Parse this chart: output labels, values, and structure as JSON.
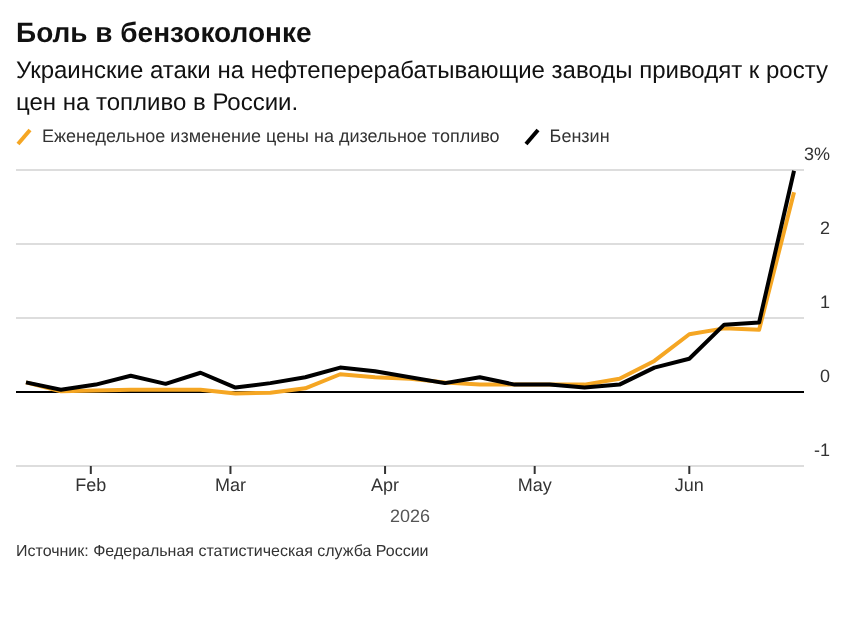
{
  "chart_data": {
    "type": "line",
    "title": "Боль в бензоколонке",
    "subtitle": "Украинские атаки на нефтеперерабатывающие заводы приводят к росту цен на топливо в России.",
    "xlabel": "2026",
    "x": [
      "2026-01-19",
      "2026-01-26",
      "2026-02-02",
      "2026-02-09",
      "2026-02-16",
      "2026-02-23",
      "2026-03-02",
      "2026-03-09",
      "2026-03-16",
      "2026-03-23",
      "2026-03-30",
      "2026-04-06",
      "2026-04-13",
      "2026-04-20",
      "2026-04-27",
      "2026-05-04",
      "2026-05-11",
      "2026-05-18",
      "2026-05-25",
      "2026-06-01",
      "2026-06-08",
      "2026-06-15",
      "2026-06-22"
    ],
    "series": [
      {
        "name": "Еженедельное изменение цены на дизельное топливо",
        "color": "#f5a623",
        "values": [
          0.13,
          0.01,
          0.02,
          0.03,
          0.03,
          0.03,
          -0.02,
          -0.01,
          0.05,
          0.24,
          0.2,
          0.18,
          0.13,
          0.1,
          0.1,
          0.1,
          0.1,
          0.18,
          0.42,
          0.78,
          0.86,
          0.84,
          2.7
        ]
      },
      {
        "name": "Бензин",
        "color": "#000000",
        "values": [
          0.13,
          0.03,
          0.1,
          0.22,
          0.11,
          0.26,
          0.06,
          0.12,
          0.2,
          0.33,
          0.28,
          0.2,
          0.12,
          0.2,
          0.1,
          0.1,
          0.06,
          0.1,
          0.33,
          0.45,
          0.91,
          0.94,
          2.99
        ]
      }
    ],
    "xlim": [
      "2026-01-17",
      "2026-06-24"
    ],
    "xticks": [
      {
        "value": "2026-02-01",
        "label": "Feb"
      },
      {
        "value": "2026-03-01",
        "label": "Mar"
      },
      {
        "value": "2026-04-01",
        "label": "Apr"
      },
      {
        "value": "2026-05-01",
        "label": "May"
      },
      {
        "value": "2026-06-01",
        "label": "Jun"
      }
    ],
    "ylim": [
      -1,
      3
    ],
    "yticks": [
      -1,
      0,
      1,
      2,
      {
        "value": 3,
        "label": "3%"
      }
    ],
    "ref_lines": [
      {
        "axis": "y",
        "value": 0,
        "color": "#000000"
      }
    ],
    "grid": "y",
    "legend": "top left",
    "marker": "none",
    "line_style": "solid",
    "annotations": [
      "Источник: Федеральная статистическая служба России"
    ]
  }
}
